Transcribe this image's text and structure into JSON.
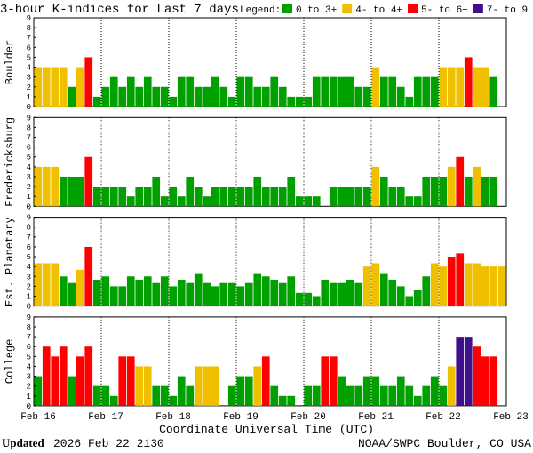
{
  "title": "3-hour K-indices for Last 7 days",
  "legend": {
    "label": "Legend:",
    "items": [
      {
        "name": "0 to 3+",
        "color": "#00a000"
      },
      {
        "name": "4- to 4+",
        "color": "#f0c000"
      },
      {
        "name": "5- to 6+",
        "color": "#ff0000"
      },
      {
        "name": "7- to 9",
        "color": "#40108c"
      }
    ]
  },
  "chart_data": [
    {
      "type": "bar",
      "ylabel": "Boulder",
      "ylim": [
        0,
        9
      ],
      "yticks": [
        0,
        1,
        2,
        3,
        4,
        5,
        6,
        7,
        8,
        9
      ],
      "values": [
        4,
        4,
        4,
        4,
        2,
        4,
        5,
        1,
        2,
        3,
        2,
        3,
        2,
        3,
        2,
        2,
        1,
        3,
        3,
        2,
        2,
        3,
        2,
        1,
        3,
        3,
        2,
        2,
        3,
        2,
        1,
        1,
        1,
        3,
        3,
        3,
        3,
        3,
        2,
        2,
        4,
        3,
        3,
        2,
        1,
        3,
        3,
        3,
        4,
        4,
        4,
        5,
        4,
        4,
        3,
        0
      ],
      "colors": [
        "#f0c000",
        "#f0c000",
        "#f0c000",
        "#f0c000",
        "#00a000",
        "#f0c000",
        "#ff0000",
        "#00a000",
        "#00a000",
        "#00a000",
        "#00a000",
        "#00a000",
        "#00a000",
        "#00a000",
        "#00a000",
        "#00a000",
        "#00a000",
        "#00a000",
        "#00a000",
        "#00a000",
        "#00a000",
        "#00a000",
        "#00a000",
        "#00a000",
        "#00a000",
        "#00a000",
        "#00a000",
        "#00a000",
        "#00a000",
        "#00a000",
        "#00a000",
        "#00a000",
        "#00a000",
        "#00a000",
        "#00a000",
        "#00a000",
        "#00a000",
        "#00a000",
        "#00a000",
        "#00a000",
        "#f0c000",
        "#00a000",
        "#00a000",
        "#00a000",
        "#00a000",
        "#00a000",
        "#00a000",
        "#00a000",
        "#f0c000",
        "#f0c000",
        "#f0c000",
        "#ff0000",
        "#f0c000",
        "#f0c000",
        "#00a000",
        "#00a000"
      ]
    },
    {
      "type": "bar",
      "ylabel": "Fredericksburg",
      "ylim": [
        0,
        9
      ],
      "yticks": [
        0,
        1,
        2,
        3,
        4,
        5,
        6,
        7,
        8,
        9
      ],
      "values": [
        4,
        4,
        4,
        3,
        3,
        3,
        5,
        2,
        2,
        2,
        2,
        1,
        2,
        2,
        3,
        1,
        2,
        1,
        3,
        2,
        1,
        2,
        2,
        2,
        2,
        2,
        3,
        2,
        2,
        2,
        3,
        1,
        1,
        1,
        0,
        2,
        2,
        2,
        2,
        2,
        4,
        3,
        2,
        2,
        1,
        1,
        3,
        3,
        3,
        4,
        5,
        3,
        4,
        3,
        3,
        0
      ],
      "colors": [
        "#f0c000",
        "#f0c000",
        "#f0c000",
        "#00a000",
        "#00a000",
        "#00a000",
        "#ff0000",
        "#00a000",
        "#00a000",
        "#00a000",
        "#00a000",
        "#00a000",
        "#00a000",
        "#00a000",
        "#00a000",
        "#00a000",
        "#00a000",
        "#00a000",
        "#00a000",
        "#00a000",
        "#00a000",
        "#00a000",
        "#00a000",
        "#00a000",
        "#00a000",
        "#00a000",
        "#00a000",
        "#00a000",
        "#00a000",
        "#00a000",
        "#00a000",
        "#00a000",
        "#00a000",
        "#00a000",
        "#00a000",
        "#00a000",
        "#00a000",
        "#00a000",
        "#00a000",
        "#00a000",
        "#f0c000",
        "#00a000",
        "#00a000",
        "#00a000",
        "#00a000",
        "#00a000",
        "#00a000",
        "#00a000",
        "#00a000",
        "#f0c000",
        "#ff0000",
        "#00a000",
        "#f0c000",
        "#00a000",
        "#00a000",
        "#00a000"
      ]
    },
    {
      "type": "bar",
      "ylabel": "Est. Planetary",
      "ylim": [
        0,
        9
      ],
      "yticks": [
        0,
        1,
        2,
        3,
        4,
        5,
        6,
        7,
        8,
        9
      ],
      "values": [
        4.33,
        4.33,
        4.33,
        3,
        2.33,
        3.67,
        6,
        2.67,
        3,
        2,
        2,
        3,
        2.67,
        3,
        2.33,
        3,
        2,
        2.67,
        2.33,
        3.33,
        2.33,
        2,
        2.33,
        2.33,
        2,
        2.33,
        3.33,
        3,
        2.67,
        2.33,
        3,
        1.33,
        1.33,
        1,
        2.67,
        2.33,
        2.33,
        2.67,
        2.33,
        4,
        4.33,
        3.33,
        2.67,
        2,
        1,
        1.67,
        3,
        4.33,
        4,
        5,
        5.33,
        4.33,
        4.33,
        4,
        4,
        4
      ],
      "colors": [
        "#f0c000",
        "#f0c000",
        "#f0c000",
        "#00a000",
        "#00a000",
        "#f0c000",
        "#ff0000",
        "#00a000",
        "#00a000",
        "#00a000",
        "#00a000",
        "#00a000",
        "#00a000",
        "#00a000",
        "#00a000",
        "#00a000",
        "#00a000",
        "#00a000",
        "#00a000",
        "#00a000",
        "#00a000",
        "#00a000",
        "#00a000",
        "#00a000",
        "#00a000",
        "#00a000",
        "#00a000",
        "#00a000",
        "#00a000",
        "#00a000",
        "#00a000",
        "#00a000",
        "#00a000",
        "#00a000",
        "#00a000",
        "#00a000",
        "#00a000",
        "#00a000",
        "#00a000",
        "#f0c000",
        "#f0c000",
        "#00a000",
        "#00a000",
        "#00a000",
        "#00a000",
        "#00a000",
        "#00a000",
        "#f0c000",
        "#f0c000",
        "#ff0000",
        "#ff0000",
        "#f0c000",
        "#f0c000",
        "#f0c000",
        "#f0c000",
        "#f0c000"
      ]
    },
    {
      "type": "bar",
      "ylabel": "College",
      "ylim": [
        0,
        9
      ],
      "yticks": [
        0,
        1,
        2,
        3,
        4,
        5,
        6,
        7,
        8,
        9
      ],
      "values": [
        3,
        6,
        5,
        6,
        3,
        5,
        6,
        2,
        2,
        1,
        5,
        5,
        4,
        4,
        2,
        2,
        1,
        3,
        2,
        4,
        4,
        4,
        0,
        2,
        3,
        3,
        4,
        5,
        2,
        1,
        1,
        0,
        2,
        2,
        5,
        5,
        3,
        2,
        2,
        3,
        3,
        2,
        2,
        3,
        2,
        1,
        2,
        3,
        2,
        4,
        7,
        7,
        6,
        5,
        5,
        0
      ],
      "colors": [
        "#00a000",
        "#ff0000",
        "#ff0000",
        "#ff0000",
        "#00a000",
        "#ff0000",
        "#ff0000",
        "#00a000",
        "#00a000",
        "#00a000",
        "#ff0000",
        "#ff0000",
        "#f0c000",
        "#f0c000",
        "#00a000",
        "#00a000",
        "#00a000",
        "#00a000",
        "#00a000",
        "#f0c000",
        "#f0c000",
        "#f0c000",
        "#00a000",
        "#00a000",
        "#00a000",
        "#00a000",
        "#f0c000",
        "#ff0000",
        "#00a000",
        "#00a000",
        "#00a000",
        "#00a000",
        "#00a000",
        "#00a000",
        "#ff0000",
        "#ff0000",
        "#00a000",
        "#00a000",
        "#00a000",
        "#00a000",
        "#00a000",
        "#00a000",
        "#00a000",
        "#00a000",
        "#00a000",
        "#00a000",
        "#00a000",
        "#00a000",
        "#00a000",
        "#f0c000",
        "#40108c",
        "#40108c",
        "#ff0000",
        "#ff0000",
        "#ff0000",
        "#00a000"
      ]
    }
  ],
  "x_axis": {
    "label": "Coordinate Universal Time (UTC)",
    "ticks": [
      "Feb 16",
      "Feb 17",
      "Feb 18",
      "Feb 19",
      "Feb 20",
      "Feb 21",
      "Feb 22",
      "Feb 23"
    ]
  },
  "footer": {
    "updated_label": "Updated",
    "updated": "2026 Feb 22 2130",
    "source": "NOAA/SWPC Boulder, CO USA"
  }
}
